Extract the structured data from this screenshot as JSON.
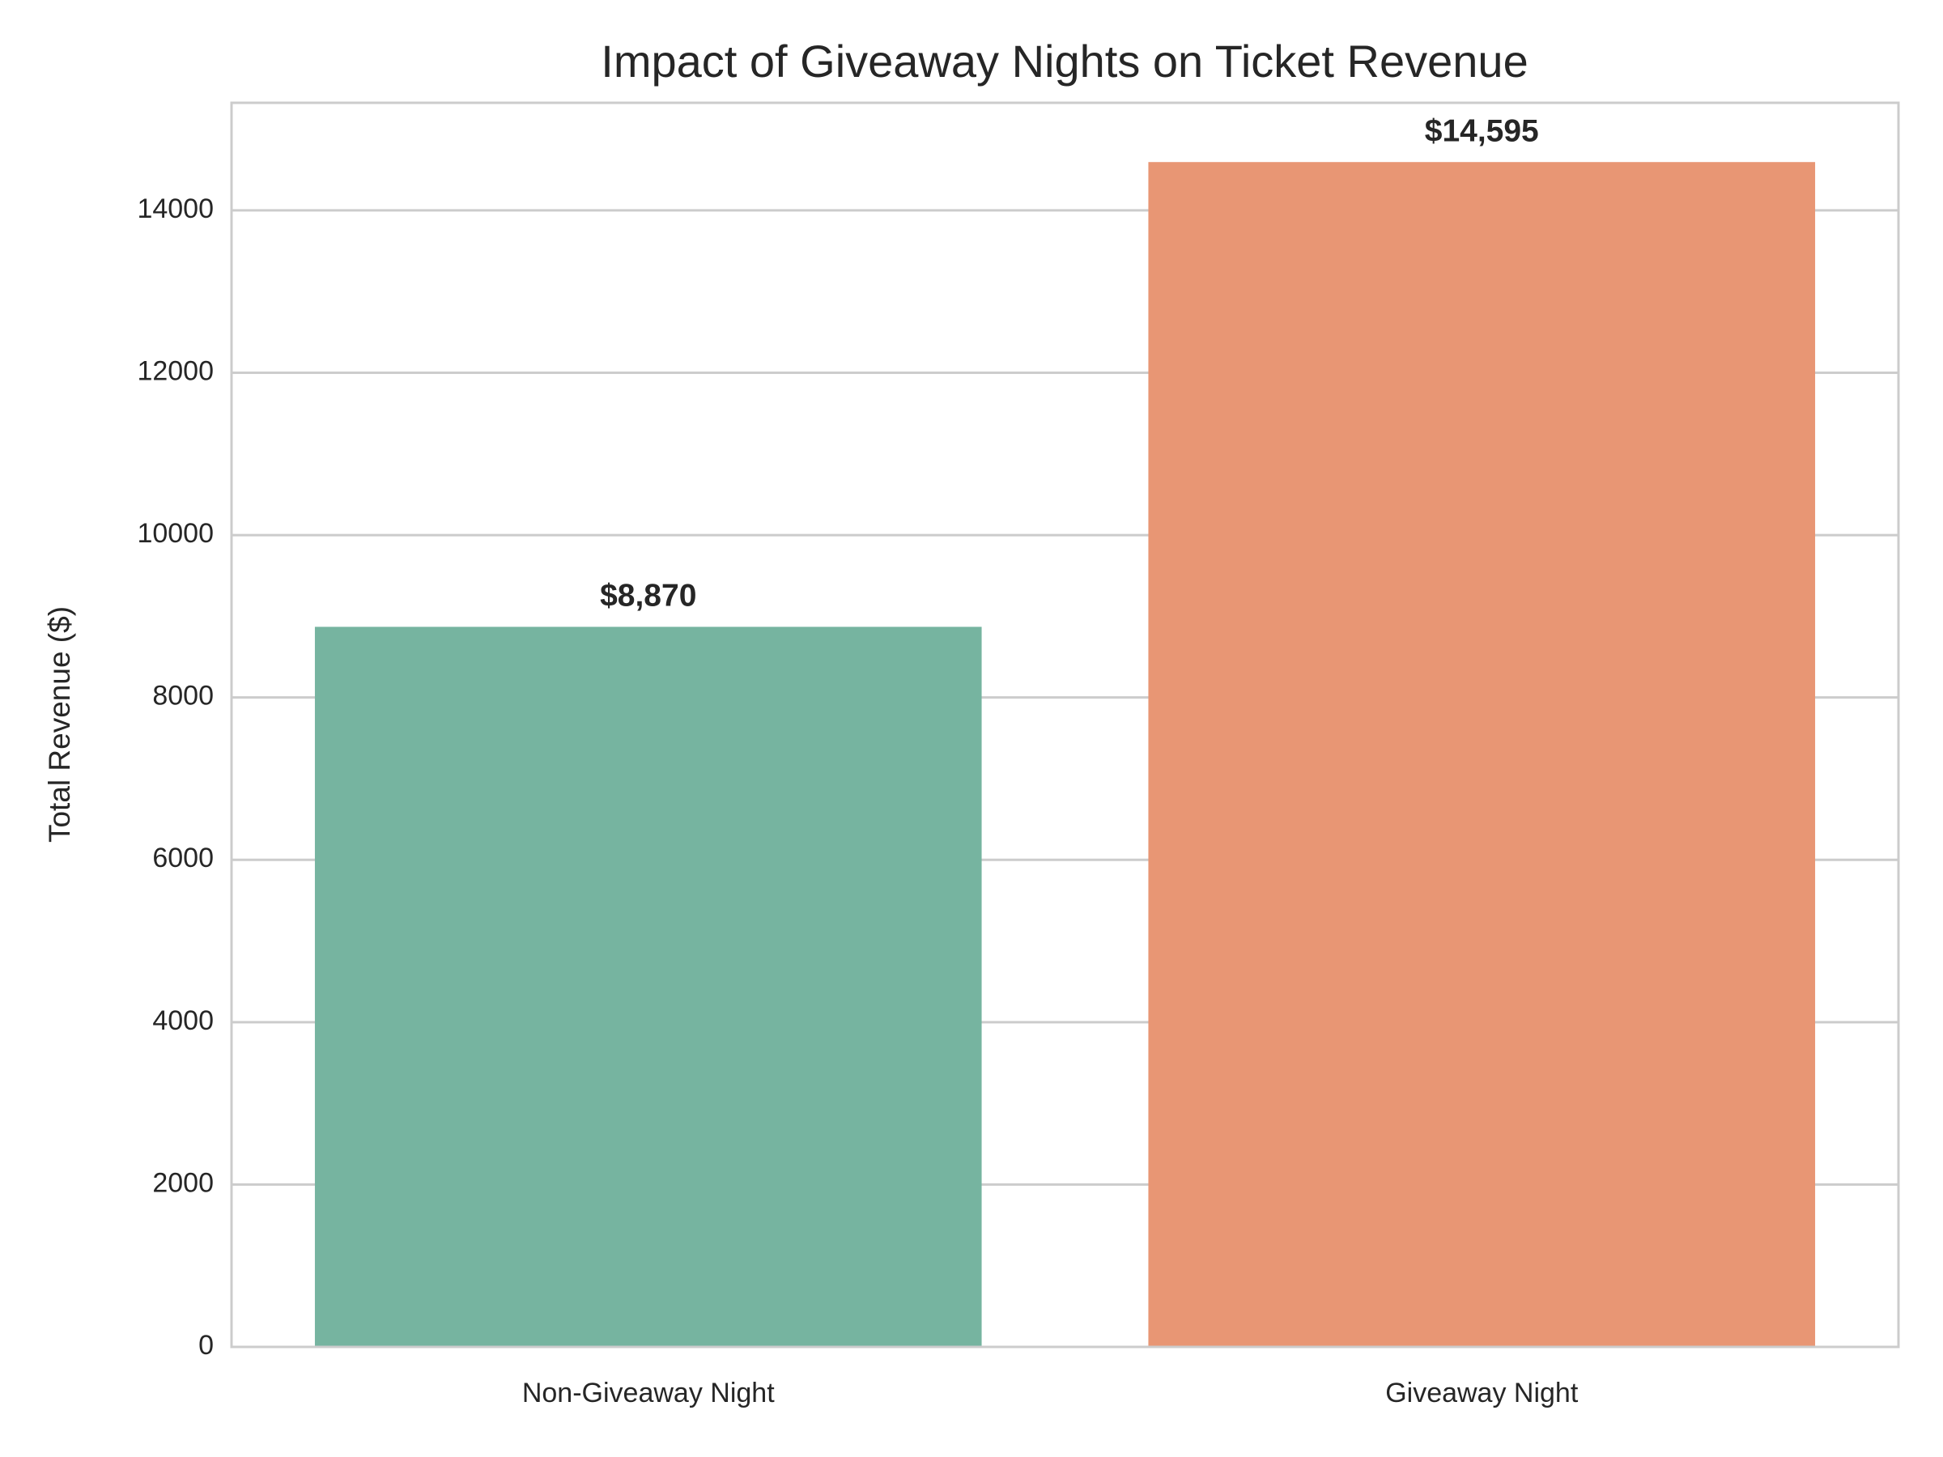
{
  "chart_data": {
    "type": "bar",
    "title": "Impact of Giveaway Nights on Ticket Revenue",
    "y_label": "Total Revenue ($)",
    "categories": [
      "Non-Giveaway Night",
      "Giveaway Night"
    ],
    "values": [
      8870,
      14595
    ],
    "value_labels": [
      "$8,870",
      "$14,595"
    ],
    "colors": [
      "#76b4a0",
      "#e89674"
    ],
    "ylim": [
      0,
      15325
    ],
    "yticks": [
      0,
      2000,
      4000,
      6000,
      8000,
      10000,
      12000,
      14000
    ],
    "grid": true
  }
}
